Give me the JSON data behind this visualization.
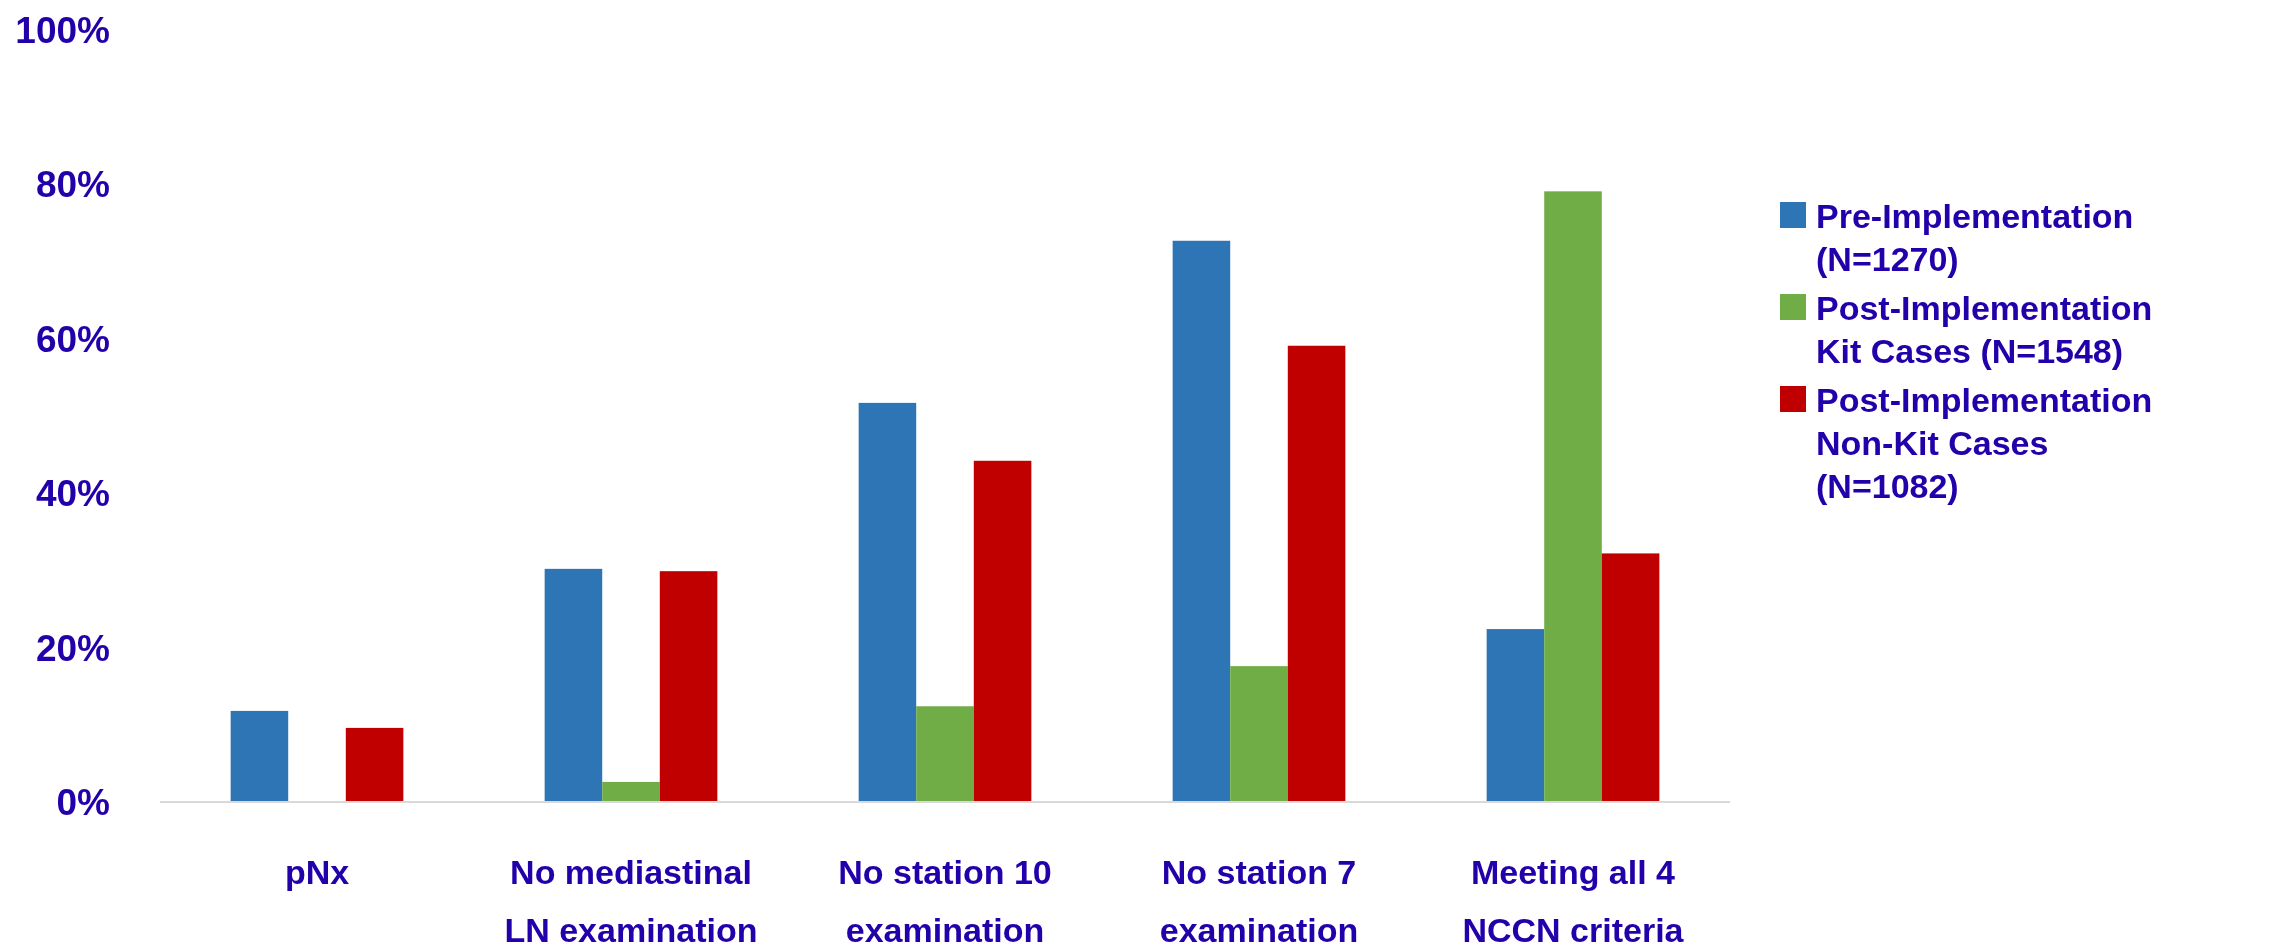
{
  "chart_data": {
    "type": "bar",
    "categories": [
      "pNx",
      "No mediastinal LN examination",
      "No station 10 examination",
      "No station 7 examination",
      "Meeting all 4 NCCN criteria"
    ],
    "series": [
      {
        "name": "Pre-Implementation (N=1270)",
        "color": "#2e75b6",
        "values": [
          11.8,
          30.2,
          51.7,
          72.7,
          22.4
        ]
      },
      {
        "name": "Post-Implementation Kit Cases (N=1548)",
        "color": "#70ad47",
        "values": [
          0,
          2.6,
          12.4,
          17.6,
          79.1
        ]
      },
      {
        "name": "Post-Implementation Non-Kit Cases (N=1082)",
        "color": "#c00000",
        "values": [
          9.6,
          29.9,
          44.2,
          59.1,
          32.2
        ]
      }
    ],
    "ylim": [
      0,
      100
    ],
    "yticks": [
      {
        "value": 0,
        "label": "0%"
      },
      {
        "value": 20,
        "label": "20%"
      },
      {
        "value": 40,
        "label": "40%"
      },
      {
        "value": 60,
        "label": "60%"
      },
      {
        "value": 80,
        "label": "80%"
      },
      {
        "value": 100,
        "label": "100%"
      }
    ],
    "grid": false,
    "legend": "right"
  }
}
